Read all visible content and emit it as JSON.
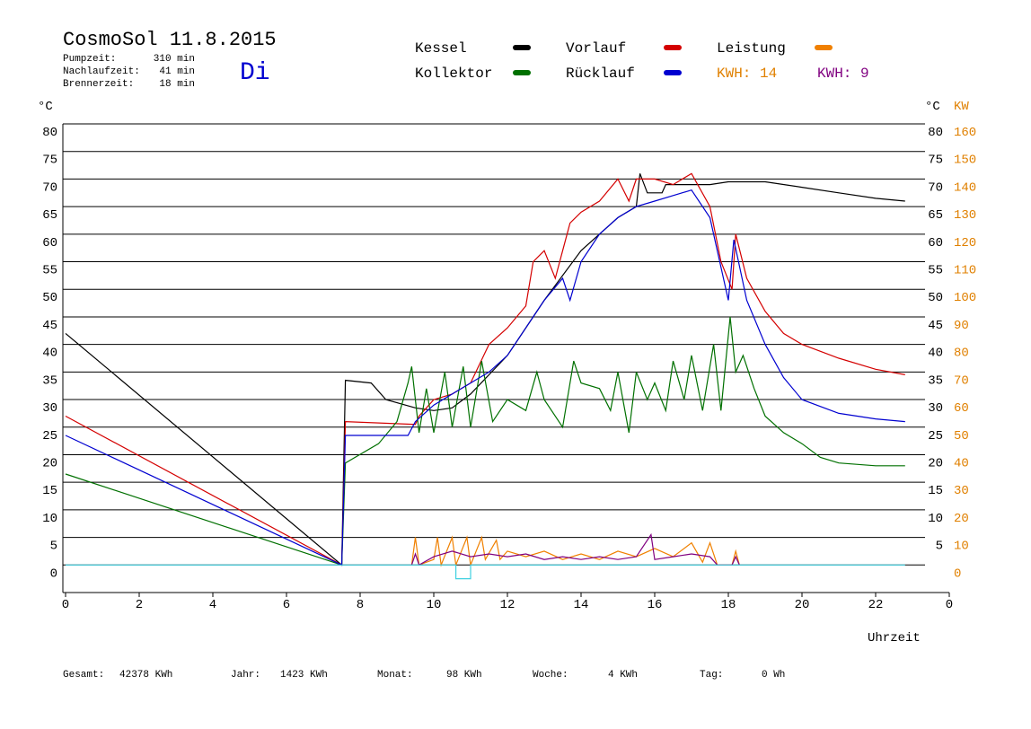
{
  "chart_data": {
    "type": "line",
    "title": "CosmoSol 11.8.2015",
    "header": {
      "info": [
        [
          "Pumpzeit:",
          "310 min"
        ],
        [
          "Nachlaufzeit:",
          "41 min"
        ],
        [
          "Brennerzeit:",
          "18 min"
        ]
      ],
      "weekday": "Di",
      "kwh_labels": [
        "KWH: 14",
        "KWH: 9"
      ]
    },
    "ylabel": "°C",
    "ylabel_right": "°C",
    "y2label": "KW",
    "xlabel": "Uhrzeit",
    "footer": [
      [
        "Gesamt:",
        "42378 KWh"
      ],
      [
        "Jahr:",
        "1423 KWh"
      ],
      [
        "Monat:",
        "98 KWh"
      ],
      [
        "Woche:",
        "4 KWh"
      ],
      [
        "Tag:",
        "0 Wh"
      ]
    ],
    "xlim": [
      0,
      24
    ],
    "xticks": [
      0,
      2,
      4,
      6,
      8,
      10,
      12,
      14,
      16,
      18,
      20,
      22,
      {
        "value": 24,
        "label": "0"
      }
    ],
    "ylim": [
      -5,
      80
    ],
    "yticks": [
      0,
      5,
      10,
      15,
      20,
      25,
      30,
      35,
      40,
      45,
      50,
      55,
      60,
      65,
      70,
      75,
      80
    ],
    "y2lim": [
      -10,
      160
    ],
    "y2ticks": [
      0,
      10,
      20,
      30,
      40,
      50,
      60,
      70,
      80,
      90,
      100,
      110,
      120,
      130,
      140,
      150,
      160
    ],
    "grid": true,
    "series": [
      {
        "name": "Kessel",
        "color": "#000000",
        "x": [
          0,
          7.5,
          7.6,
          8.3,
          8.7,
          9.5,
          10,
          10.5,
          11,
          12,
          13,
          14,
          15,
          15.5,
          15.6,
          15.8,
          16.2,
          16.3,
          17.5,
          18,
          19,
          20,
          21,
          22,
          22.8
        ],
        "values": [
          42,
          0,
          33.5,
          33,
          30,
          28.5,
          28,
          28.5,
          31,
          38,
          48,
          57,
          63,
          65,
          71,
          67.5,
          67.5,
          69,
          69,
          69.5,
          69.5,
          68.5,
          67.5,
          66.5,
          66
        ]
      },
      {
        "name": "Vorlauf",
        "color": "#d40000",
        "x": [
          0,
          7.5,
          7.6,
          9.5,
          9.6,
          10,
          10.5,
          11,
          11.5,
          12,
          12.5,
          12.7,
          13,
          13.3,
          13.5,
          13.7,
          14,
          14.5,
          15,
          15.3,
          15.5,
          16,
          16.5,
          17,
          17.5,
          17.8,
          18.1,
          18.2,
          18.5,
          19,
          19.5,
          20,
          21,
          22,
          22.8
        ],
        "values": [
          27,
          0,
          26,
          25.5,
          27,
          30,
          31,
          33,
          40,
          43,
          47,
          55,
          57,
          52,
          57,
          62,
          64,
          66,
          70,
          66,
          70,
          70,
          69,
          71,
          65,
          55,
          50,
          60,
          52,
          46,
          42,
          40,
          37.5,
          35.5,
          34.5
        ]
      },
      {
        "name": "Leistung",
        "color": "#f08000",
        "axis": "y2",
        "x": [
          9.4,
          9.5,
          9.6,
          10,
          10.1,
          10.2,
          10.5,
          10.6,
          10.9,
          11,
          11.3,
          11.4,
          11.7,
          11.8,
          12,
          12.5,
          13,
          13.5,
          14,
          14.5,
          15,
          15.5,
          16,
          16.5,
          17,
          17.3,
          17.5,
          17.7,
          18.1,
          18.2,
          18.3
        ],
        "values": [
          0,
          10,
          0,
          2,
          10,
          0,
          10,
          0,
          10,
          0,
          10,
          2,
          9,
          2,
          5,
          3,
          5,
          2,
          4,
          2,
          5,
          3,
          6,
          3,
          8,
          1,
          8,
          0,
          0,
          5,
          0
        ]
      },
      {
        "name": "Kollektor",
        "color": "#007000",
        "x": [
          0,
          7.5,
          7.6,
          8.5,
          9,
          9.3,
          9.4,
          9.6,
          9.8,
          10,
          10.3,
          10.5,
          10.8,
          11,
          11.3,
          11.6,
          12,
          12.5,
          12.8,
          13,
          13.5,
          13.8,
          14,
          14.5,
          14.8,
          15,
          15.3,
          15.5,
          15.8,
          16,
          16.3,
          16.5,
          16.8,
          17,
          17.3,
          17.6,
          17.8,
          18.05,
          18.2,
          18.4,
          18.7,
          19,
          19.5,
          20,
          20.5,
          21,
          22,
          22.8
        ],
        "values": [
          16.5,
          0,
          18.5,
          22,
          26,
          33,
          36,
          24,
          32,
          24,
          35,
          25,
          36,
          25,
          37,
          26,
          30,
          28,
          35,
          30,
          25,
          37,
          33,
          32,
          28,
          35,
          24,
          35,
          30,
          33,
          28,
          37,
          30,
          38,
          28,
          40,
          28,
          45,
          35,
          38,
          32,
          27,
          24,
          22,
          19.5,
          18.5,
          18,
          18
        ]
      },
      {
        "name": "Rücklauf",
        "color": "#0000d0",
        "x": [
          0,
          7.5,
          7.6,
          9.3,
          9.5,
          10,
          10.5,
          11,
          11.5,
          12,
          12.5,
          13,
          13.5,
          13.7,
          14,
          14.5,
          15,
          15.5,
          16,
          16.5,
          17,
          17.5,
          18,
          18.15,
          18.5,
          19,
          19.5,
          20,
          21,
          22,
          22.8
        ],
        "values": [
          23.5,
          0,
          23.5,
          23.5,
          26,
          29,
          31,
          33,
          35,
          38,
          43,
          48,
          52,
          48,
          55,
          60,
          63,
          65,
          66,
          67,
          68,
          63,
          48,
          59,
          48,
          40,
          34,
          30,
          27.5,
          26.5,
          26
        ]
      },
      {
        "color": "#800080",
        "axis": "y2",
        "x": [
          9.4,
          9.5,
          9.6,
          10,
          10.5,
          11,
          11.5,
          12,
          12.5,
          13,
          13.5,
          14,
          14.5,
          15,
          15.5,
          15.9,
          16,
          16.5,
          17,
          17.5,
          17.7,
          18.1,
          18.2,
          18.3
        ],
        "values": [
          0,
          4,
          0,
          3,
          5,
          3,
          4,
          3,
          4,
          2,
          3,
          2,
          3,
          2,
          3,
          11,
          2,
          3,
          4,
          3,
          0,
          0,
          3,
          0
        ]
      },
      {
        "color": "#40d0e0",
        "x": [
          0,
          10.6,
          10.6,
          11,
          11,
          22.8
        ],
        "values": [
          0,
          0,
          -2.5,
          -2.5,
          0,
          0
        ]
      }
    ]
  }
}
